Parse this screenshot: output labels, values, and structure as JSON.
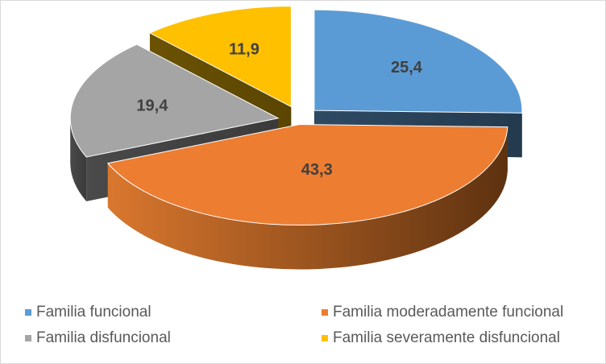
{
  "chart_data": {
    "type": "pie",
    "title": "",
    "categories": [
      "Familia funcional",
      "Familia moderadamente funcional",
      "Familia disfuncional",
      "Familia severamente disfuncional"
    ],
    "values": [
      25.4,
      43.3,
      19.4,
      11.9
    ],
    "data_labels": [
      "25,4",
      "43,3",
      "19,4",
      "11,9"
    ],
    "colors": [
      "#5b9bd5",
      "#ed7d31",
      "#a5a5a5",
      "#ffc000"
    ],
    "exploded": true,
    "three_d": true,
    "legend_position": "bottom"
  },
  "legend": {
    "items": [
      {
        "label": "Familia funcional",
        "color": "#5b9bd5"
      },
      {
        "label": "Familia moderadamente funcional",
        "color": "#ed7d31"
      },
      {
        "label": "Familia disfuncional",
        "color": "#a5a5a5"
      },
      {
        "label": "Familia severamente disfuncional",
        "color": "#ffc000"
      }
    ]
  }
}
